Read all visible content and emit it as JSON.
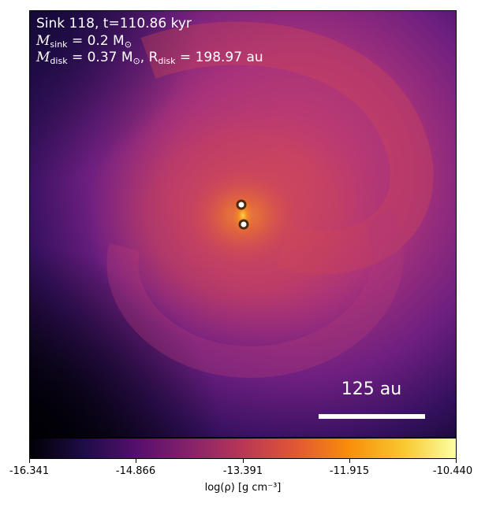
{
  "annotation": {
    "line1": "Sink 118, t=110.86 kyr",
    "m_sink_label": "M",
    "m_sink_sub": "sink",
    "m_sink_value": " = 0.2 M",
    "m_sink_unit_sub": "⊙",
    "m_disk_label": "M",
    "m_disk_sub": "disk",
    "m_disk_value": " = 0.37 M",
    "m_disk_unit_sub": "⊙",
    "r_disk_prefix": ", R",
    "r_disk_sub": "disk",
    "r_disk_value": " = 198.97 au"
  },
  "scalebar": {
    "label": "125 au"
  },
  "colorbar": {
    "label": "log(ρ) [g cm⁻³]",
    "ticks": [
      "-16.341",
      "-14.866",
      "-13.391",
      "-11.915",
      "-10.440"
    ],
    "colormap": "inferno"
  },
  "sinks": [
    {
      "name": "sink-a"
    },
    {
      "name": "sink-b"
    }
  ],
  "colors": {
    "background_dark": "#000004",
    "purple": "#3b0f70",
    "magenta": "#8c2981",
    "pink": "#c43c75",
    "orange": "#f1731d",
    "yellow": "#fcffa4"
  }
}
